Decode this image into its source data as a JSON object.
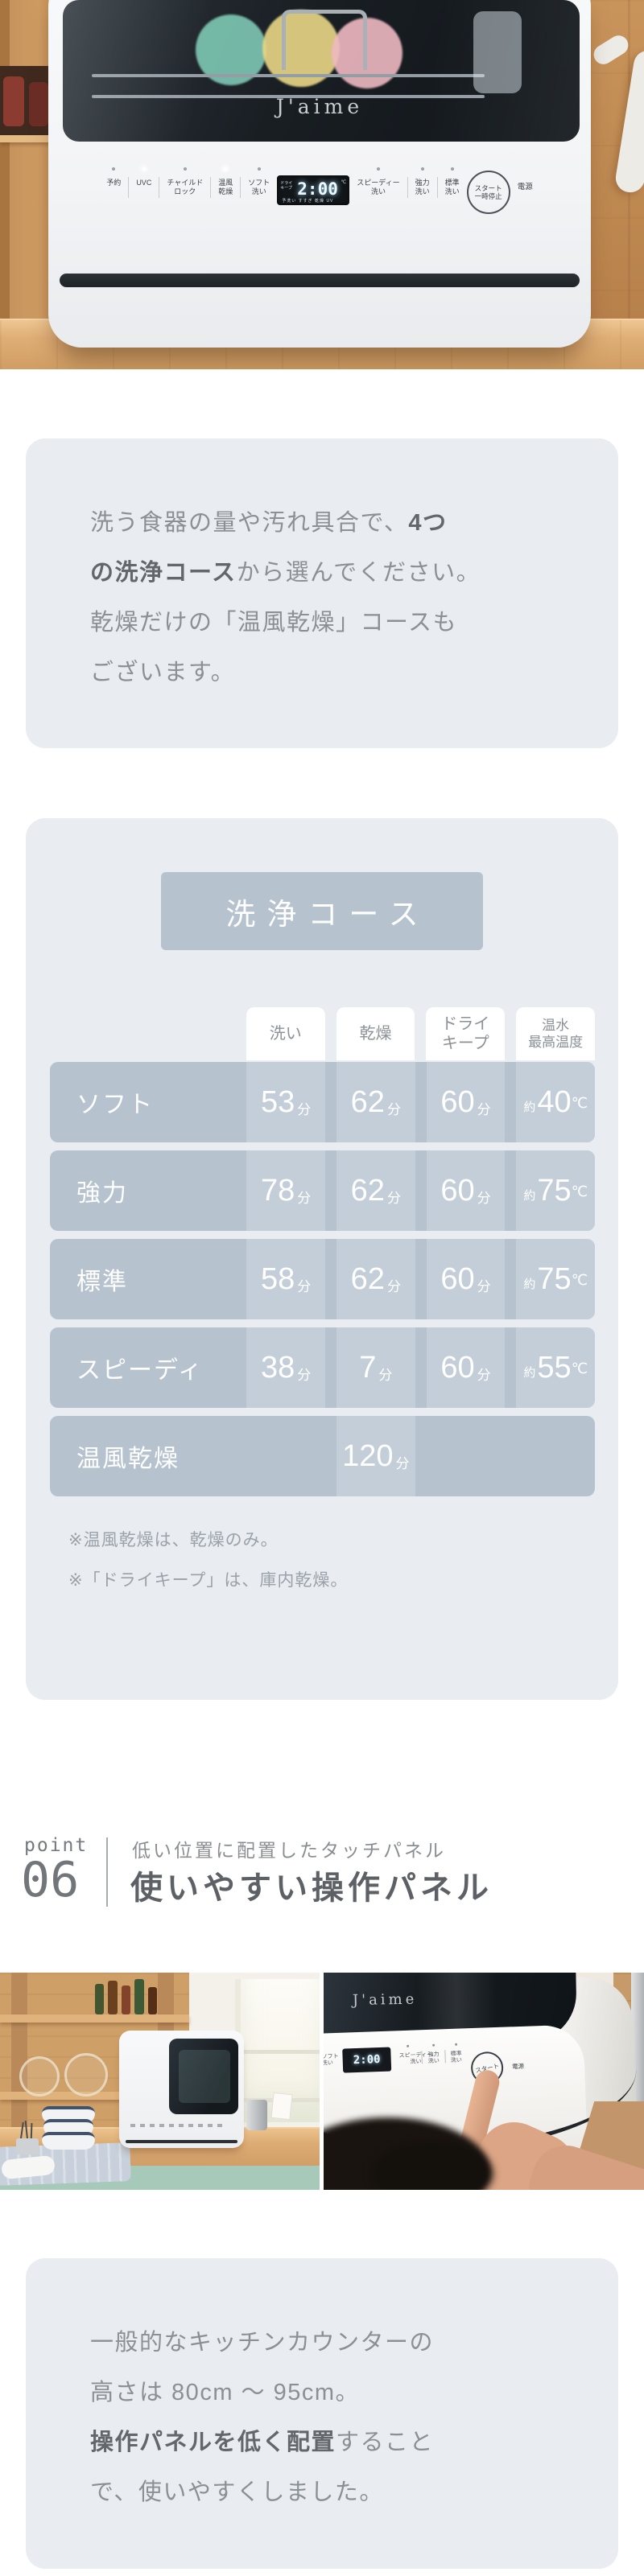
{
  "hero_photo": {
    "brand_logo": "J'aime",
    "panel": {
      "left": [
        "予約",
        "UVC",
        "チャイルド\nロック",
        "温風\n乾燥",
        "ソフト\n洗い"
      ],
      "display": {
        "time": "2:00",
        "side_label": "ドライ\nキープ",
        "bottom_labels": "予洗い すすぎ 乾燥 UV",
        "temp_unit": "℃"
      },
      "right": [
        "スピーディー\n洗い",
        "強力\n洗い",
        "標準\n洗い"
      ],
      "start_button": "スタート\n一時停止",
      "power_label": "電源"
    }
  },
  "intro_box": {
    "line1_normal": "洗う食器の量や汚れ具合で、",
    "line1_bold": "4つ",
    "line2_bold": "の洗浄コース",
    "line2_normal": "から選んでください。",
    "line3": "乾燥だけの「温風乾燥」コースも",
    "line4": "ございます。"
  },
  "course_table": {
    "title": "洗浄コース",
    "columns": [
      "洗い",
      "乾燥",
      "ドライ\nキープ",
      "温水\n最高温度"
    ],
    "unit_minutes": "分",
    "approx_prefix": "約",
    "unit_celsius": "℃",
    "rows": [
      {
        "label": "ソフト",
        "wash": "53",
        "dry": "62",
        "drykeep": "60",
        "temp": "40"
      },
      {
        "label": "強力",
        "wash": "78",
        "dry": "62",
        "drykeep": "60",
        "temp": "75"
      },
      {
        "label": "標準",
        "wash": "58",
        "dry": "62",
        "drykeep": "60",
        "temp": "75"
      },
      {
        "label": "スピーディ",
        "wash": "38",
        "dry": "7",
        "drykeep": "60",
        "temp": "55"
      },
      {
        "label": "温風乾燥",
        "dry": "120"
      }
    ],
    "notes": [
      "※温風乾燥は、乾燥のみ。",
      "※「ドライキープ」は、庫内乾燥。"
    ]
  },
  "point_section": {
    "eyebrow": "point",
    "number": "06",
    "subtitle": "低い位置に配置したタッチパネル",
    "title": "使いやすい操作パネル"
  },
  "photo_right": {
    "brand_logo": "J'aime",
    "display_time": "2:00",
    "partial_label": "ソフト\n洗い",
    "labels": [
      "スピーディー\n洗い",
      "強力\n洗い",
      "標準\n洗い"
    ],
    "start_label": "スタート",
    "power_label": "電源"
  },
  "counter_box": {
    "line1": "一般的なキッチンカウンターの",
    "line2": "高さは 80cm 〜 95cm。",
    "line3_bold": "操作パネルを低く配置",
    "line3_normal": "すること",
    "line4": "で、使いやすくしました。"
  },
  "colors": {
    "card_bg": "#e9edf1",
    "table_accent": "#b6c3ce",
    "table_stripe": "#c3ced8",
    "body_text": "#8b9094",
    "bold_text": "#63676b",
    "note_text": "#9aa1a8",
    "heading_text": "#5d6165"
  }
}
